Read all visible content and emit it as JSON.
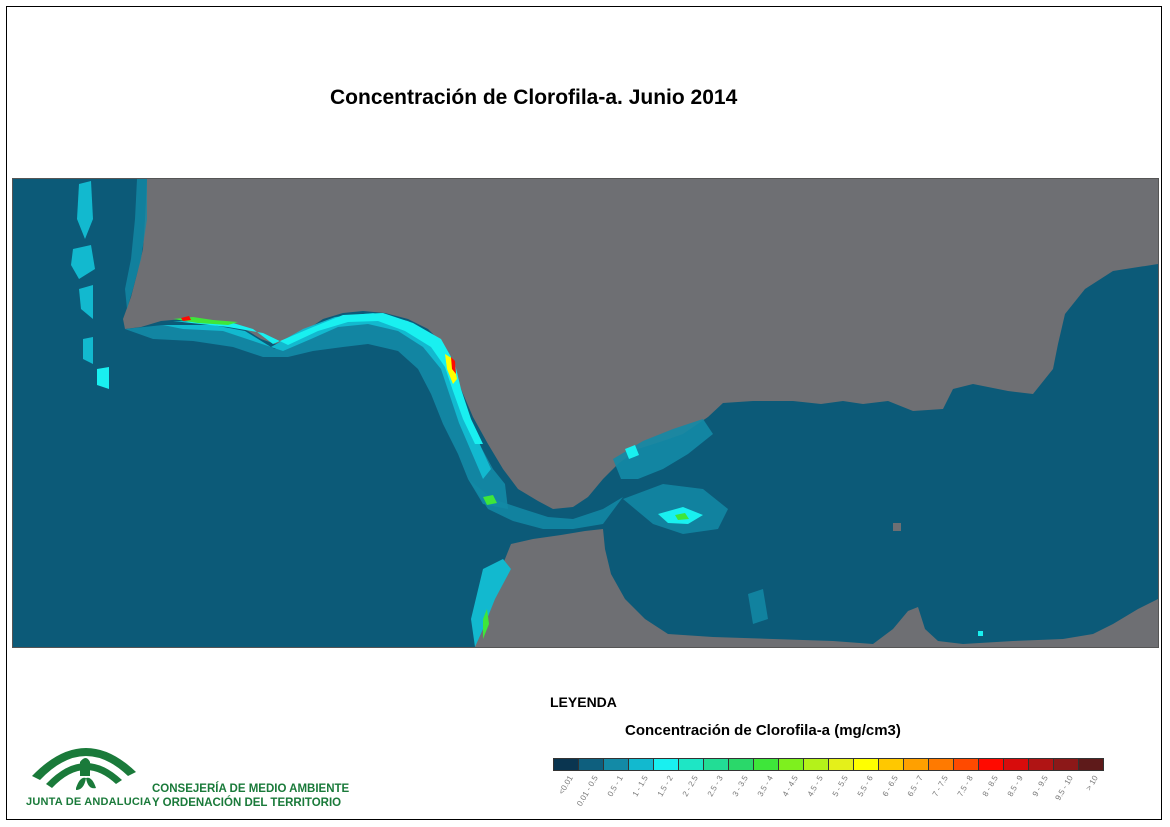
{
  "title": "Concentración de Clorofila-a. Junio 2014",
  "legend": {
    "heading": "LEYENDA",
    "subtitle": "Concentración de Clorofila-a (mg/cm3)",
    "classes": [
      {
        "label": "<0.01",
        "color": "#0a3550"
      },
      {
        "label": "0.01 - 0.5",
        "color": "#0e5f7e"
      },
      {
        "label": "0.5 - 1",
        "color": "#138aa6"
      },
      {
        "label": "1 - 1.5",
        "color": "#12b9cf"
      },
      {
        "label": "1.5 - 2",
        "color": "#19f0f0"
      },
      {
        "label": "2 - 2.5",
        "color": "#1ee6c5"
      },
      {
        "label": "2.5 - 3",
        "color": "#22dd95"
      },
      {
        "label": "3 - 3.5",
        "color": "#2ad86a"
      },
      {
        "label": "3.5 - 4",
        "color": "#3ee63a"
      },
      {
        "label": "4 - 4.5",
        "color": "#7ef01e"
      },
      {
        "label": "4.5 - 5",
        "color": "#b4f21a"
      },
      {
        "label": "5 - 5.5",
        "color": "#e4f01a"
      },
      {
        "label": "5.5 - 6",
        "color": "#ffff00"
      },
      {
        "label": "6 - 6.5",
        "color": "#ffc800"
      },
      {
        "label": "6.5 - 7",
        "color": "#ffa000"
      },
      {
        "label": "7 - 7.5",
        "color": "#ff7a00"
      },
      {
        "label": "7.5 - 8",
        "color": "#ff4a00"
      },
      {
        "label": "8 - 8.5",
        "color": "#ff0a00"
      },
      {
        "label": "8.5 - 9",
        "color": "#d80c0c"
      },
      {
        "label": "9 - 9.5",
        "color": "#b01414"
      },
      {
        "label": "9.5 - 10",
        "color": "#8c1818"
      },
      {
        "label": "> 10",
        "color": "#5e1a1a"
      }
    ]
  },
  "logo": {
    "brand": "JUNTA DE ANDALUCIA",
    "org_line1": "CONSEJERÍA DE MEDIO AMBIENTE",
    "org_line2": "Y ORDENACIÓN DEL TERRITORIO",
    "color": "#1a7a3a"
  },
  "map": {
    "land_color": "#6e6f73",
    "sea_color": "#0c5a78"
  }
}
